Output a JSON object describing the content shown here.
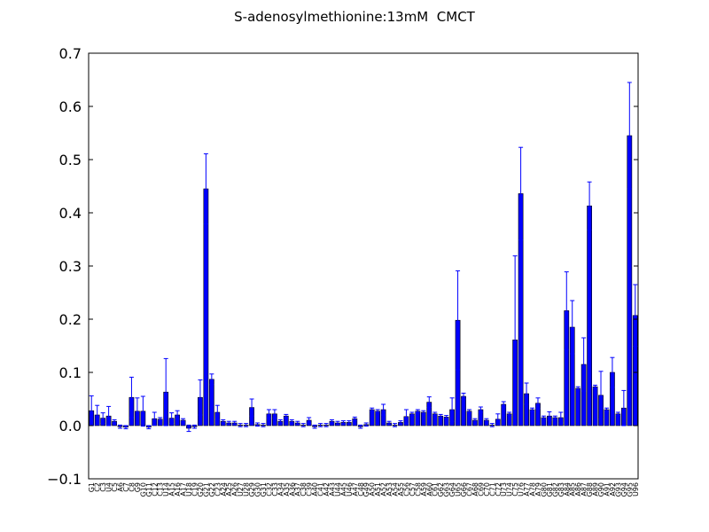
{
  "chart_data": {
    "type": "bar",
    "title": "S-adenosylmethionine:13mM  CMCT",
    "categories": [
      "G1",
      "C2",
      "C3",
      "U4",
      "C5",
      "A6",
      "C7",
      "C8",
      "G9",
      "G10",
      "G11",
      "C12",
      "C13",
      "U14",
      "A15",
      "A16",
      "A17",
      "U18",
      "C19",
      "G20",
      "G21",
      "G22",
      "C23",
      "A24",
      "A25",
      "A26",
      "U27",
      "U28",
      "G29",
      "G30",
      "G31",
      "C32",
      "C33",
      "A34",
      "A35",
      "A36",
      "A37",
      "C38",
      "C39",
      "A40",
      "C41",
      "A42",
      "A43",
      "U44",
      "A45",
      "U46",
      "A47",
      "C48",
      "G49",
      "A50",
      "A51",
      "A52",
      "A53",
      "A54",
      "A55",
      "C56",
      "C57",
      "C58",
      "A59",
      "A60",
      "C61",
      "G62",
      "G63",
      "G64",
      "U65",
      "G66",
      "C67",
      "A68",
      "C69",
      "C70",
      "C71",
      "C72",
      "U73",
      "U74",
      "C75",
      "U76",
      "A77",
      "A78",
      "A79",
      "G80",
      "G81",
      "G82",
      "G83",
      "A84",
      "A85",
      "A86",
      "A87",
      "G88",
      "A89",
      "G90",
      "A91",
      "A92",
      "G93",
      "G94",
      "G95",
      "U96"
    ],
    "values": [
      0.028,
      0.02,
      0.014,
      0.018,
      0.008,
      -0.002,
      -0.003,
      0.053,
      0.027,
      0.027,
      -0.003,
      0.013,
      0.012,
      0.063,
      0.014,
      0.02,
      0.01,
      -0.005,
      -0.002,
      0.053,
      0.445,
      0.087,
      0.025,
      0.008,
      0.005,
      0.005,
      0.001,
      0.001,
      0.034,
      0.002,
      0.001,
      0.022,
      0.022,
      0.008,
      0.018,
      0.008,
      0.005,
      0.001,
      0.01,
      -0.002,
      0.001,
      0.001,
      0.008,
      0.005,
      0.006,
      0.006,
      0.013,
      -0.002,
      0.002,
      0.03,
      0.027,
      0.03,
      0.005,
      0.001,
      0.006,
      0.017,
      0.022,
      0.027,
      0.025,
      0.044,
      0.022,
      0.018,
      0.016,
      0.03,
      0.198,
      0.055,
      0.027,
      0.01,
      0.03,
      0.01,
      0.001,
      0.012,
      0.04,
      0.022,
      0.161,
      0.436,
      0.06,
      0.03,
      0.042,
      0.015,
      0.018,
      0.015,
      0.015,
      0.216,
      0.185,
      0.07,
      0.115,
      0.413,
      0.073,
      0.057,
      0.03,
      0.1,
      0.022,
      0.033,
      0.545,
      0.207
    ],
    "errors": [
      0.028,
      0.018,
      0.01,
      0.018,
      0.003,
      0.003,
      0.003,
      0.038,
      0.025,
      0.028,
      0.003,
      0.012,
      0.003,
      0.063,
      0.01,
      0.008,
      0.003,
      0.006,
      0.003,
      0.033,
      0.066,
      0.01,
      0.013,
      0.003,
      0.003,
      0.003,
      0.003,
      0.003,
      0.016,
      0.003,
      0.003,
      0.008,
      0.008,
      0.003,
      0.003,
      0.003,
      0.003,
      0.003,
      0.005,
      0.003,
      0.003,
      0.003,
      0.003,
      0.003,
      0.003,
      0.003,
      0.003,
      0.003,
      0.003,
      0.003,
      0.003,
      0.01,
      0.003,
      0.003,
      0.003,
      0.013,
      0.003,
      0.003,
      0.003,
      0.01,
      0.003,
      0.003,
      0.003,
      0.022,
      0.093,
      0.006,
      0.003,
      0.003,
      0.005,
      0.003,
      0.003,
      0.01,
      0.005,
      0.003,
      0.158,
      0.087,
      0.02,
      0.003,
      0.01,
      0.003,
      0.008,
      0.003,
      0.01,
      0.073,
      0.05,
      0.003,
      0.05,
      0.045,
      0.003,
      0.045,
      0.003,
      0.028,
      0.003,
      0.033,
      0.1,
      0.058
    ],
    "color": "#0000ff",
    "error_color": "#0000ff",
    "ylim": [
      -0.1,
      0.7
    ],
    "yticks": [
      {
        "value": -0.1,
        "label": "−0.1"
      },
      {
        "value": 0,
        "label": "0.0"
      },
      0.1,
      0.2,
      0.3,
      0.4,
      0.5,
      0.6,
      0.7
    ]
  }
}
